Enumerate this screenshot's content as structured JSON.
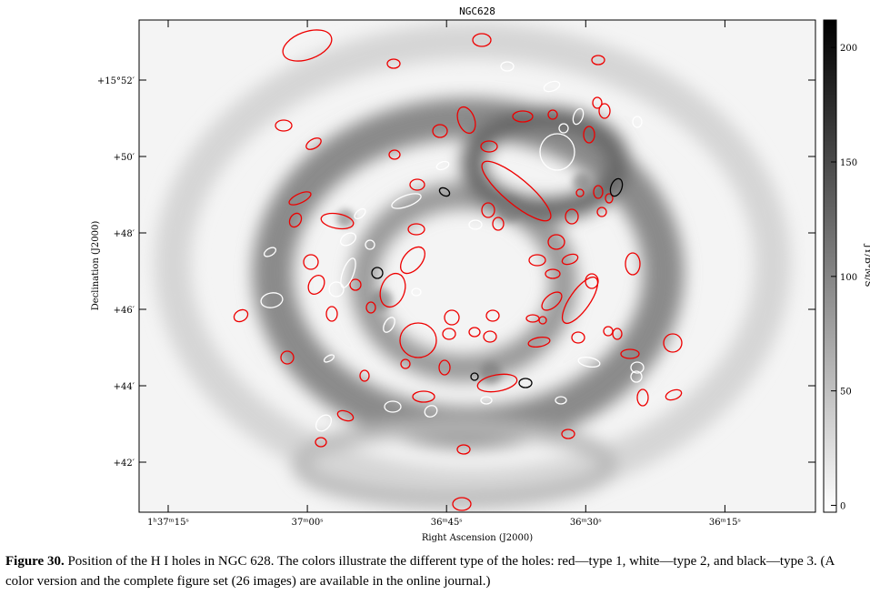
{
  "figure": {
    "title": "NGC628",
    "x_axis": {
      "label": "Right Ascension (J2000)",
      "ticks": [
        "1ʰ37ᵐ15ˢ",
        "37ᵐ00ˢ",
        "36ᵐ45ˢ",
        "36ᵐ30ˢ",
        "36ᵐ15ˢ"
      ]
    },
    "y_axis": {
      "label": "Declination (J2000)",
      "ticks": [
        "+15°52′",
        "+50′",
        "+48′",
        "+46′",
        "+44′",
        "+42′"
      ]
    },
    "colorbar": {
      "label": "JY/B*M/S",
      "lim": [
        -3,
        212
      ],
      "ticks": [
        0,
        50,
        100,
        150,
        200
      ]
    }
  },
  "caption": {
    "label": "Figure 30.",
    "text": "Position of the H I holes in NGC 628. The colors illustrate the different type of the holes: red—type 1, white—type 2, and black—type 3. (A color version and the complete figure set (26 images) are available in the online journal.)"
  }
}
